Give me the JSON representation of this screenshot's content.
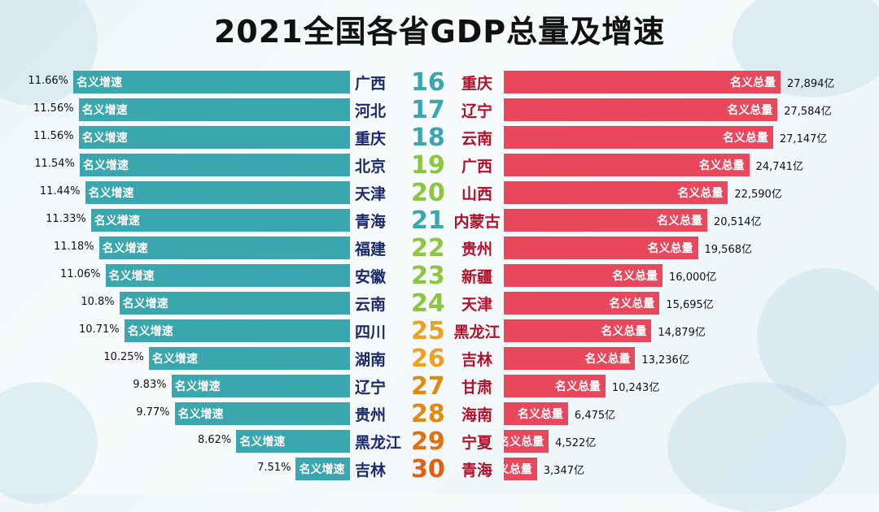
{
  "title": "2021全国各省GDP总量及增速",
  "chart_data": {
    "type": "bar",
    "title": "2021全国各省GDP总量及增速",
    "growth_series_label": "名义增速",
    "total_series_label": "名义总量",
    "growth_max": 11.66,
    "total_max": 27894,
    "total_unit": "亿",
    "rows": [
      {
        "growth_province": "广西",
        "growth_pct": 11.66,
        "growth_text": "11.66%",
        "rank": "16",
        "total_province": "重庆",
        "total": 27894,
        "total_text": "27,894亿"
      },
      {
        "growth_province": "河北",
        "growth_pct": 11.56,
        "growth_text": "11.56%",
        "rank": "17",
        "total_province": "辽宁",
        "total": 27584,
        "total_text": "27,584亿"
      },
      {
        "growth_province": "重庆",
        "growth_pct": 11.56,
        "growth_text": "11.56%",
        "rank": "18",
        "total_province": "云南",
        "total": 27147,
        "total_text": "27,147亿"
      },
      {
        "growth_province": "北京",
        "growth_pct": 11.54,
        "growth_text": "11.54%",
        "rank": "19",
        "total_province": "广西",
        "total": 24741,
        "total_text": "24,741亿"
      },
      {
        "growth_province": "天津",
        "growth_pct": 11.44,
        "growth_text": "11.44%",
        "rank": "20",
        "total_province": "山西",
        "total": 22590,
        "total_text": "22,590亿"
      },
      {
        "growth_province": "青海",
        "growth_pct": 11.33,
        "growth_text": "11.33%",
        "rank": "21",
        "total_province": "内蒙古",
        "total": 20514,
        "total_text": "20,514亿"
      },
      {
        "growth_province": "福建",
        "growth_pct": 11.18,
        "growth_text": "11.18%",
        "rank": "22",
        "total_province": "贵州",
        "total": 19568,
        "total_text": "19,568亿"
      },
      {
        "growth_province": "安徽",
        "growth_pct": 11.06,
        "growth_text": "11.06%",
        "rank": "23",
        "total_province": "新疆",
        "total": 16000,
        "total_text": "16,000亿"
      },
      {
        "growth_province": "云南",
        "growth_pct": 10.8,
        "growth_text": "10.8%",
        "rank": "24",
        "total_province": "天津",
        "total": 15695,
        "total_text": "15,695亿"
      },
      {
        "growth_province": "四川",
        "growth_pct": 10.71,
        "growth_text": "10.71%",
        "rank": "25",
        "total_province": "黑龙江",
        "total": 14879,
        "total_text": "14,879亿"
      },
      {
        "growth_province": "湖南",
        "growth_pct": 10.25,
        "growth_text": "10.25%",
        "rank": "26",
        "total_province": "吉林",
        "total": 13236,
        "total_text": "13,236亿"
      },
      {
        "growth_province": "辽宁",
        "growth_pct": 9.83,
        "growth_text": "9.83%",
        "rank": "27",
        "total_province": "甘肃",
        "total": 10243,
        "total_text": "10,243亿"
      },
      {
        "growth_province": "贵州",
        "growth_pct": 9.77,
        "growth_text": "9.77%",
        "rank": "28",
        "total_province": "海南",
        "total": 6475,
        "total_text": "6,475亿"
      },
      {
        "growth_province": "黑龙江",
        "growth_pct": 8.62,
        "growth_text": "8.62%",
        "rank": "29",
        "total_province": "宁夏",
        "total": 4522,
        "total_text": "4,522亿"
      },
      {
        "growth_province": "吉林",
        "growth_pct": 7.51,
        "growth_text": "7.51%",
        "rank": "30",
        "total_province": "青海",
        "total": 3347,
        "total_text": "3,347亿"
      }
    ],
    "rank_colors": [
      "#3aa6ad",
      "#3aa6ad",
      "#3aa6ad",
      "#8cc63f",
      "#8cc63f",
      "#3aa6ad",
      "#8cc63f",
      "#8cc63f",
      "#8cc63f",
      "#f0a020",
      "#f0a020",
      "#e08a10",
      "#e08a10",
      "#e07010",
      "#e06010"
    ]
  }
}
